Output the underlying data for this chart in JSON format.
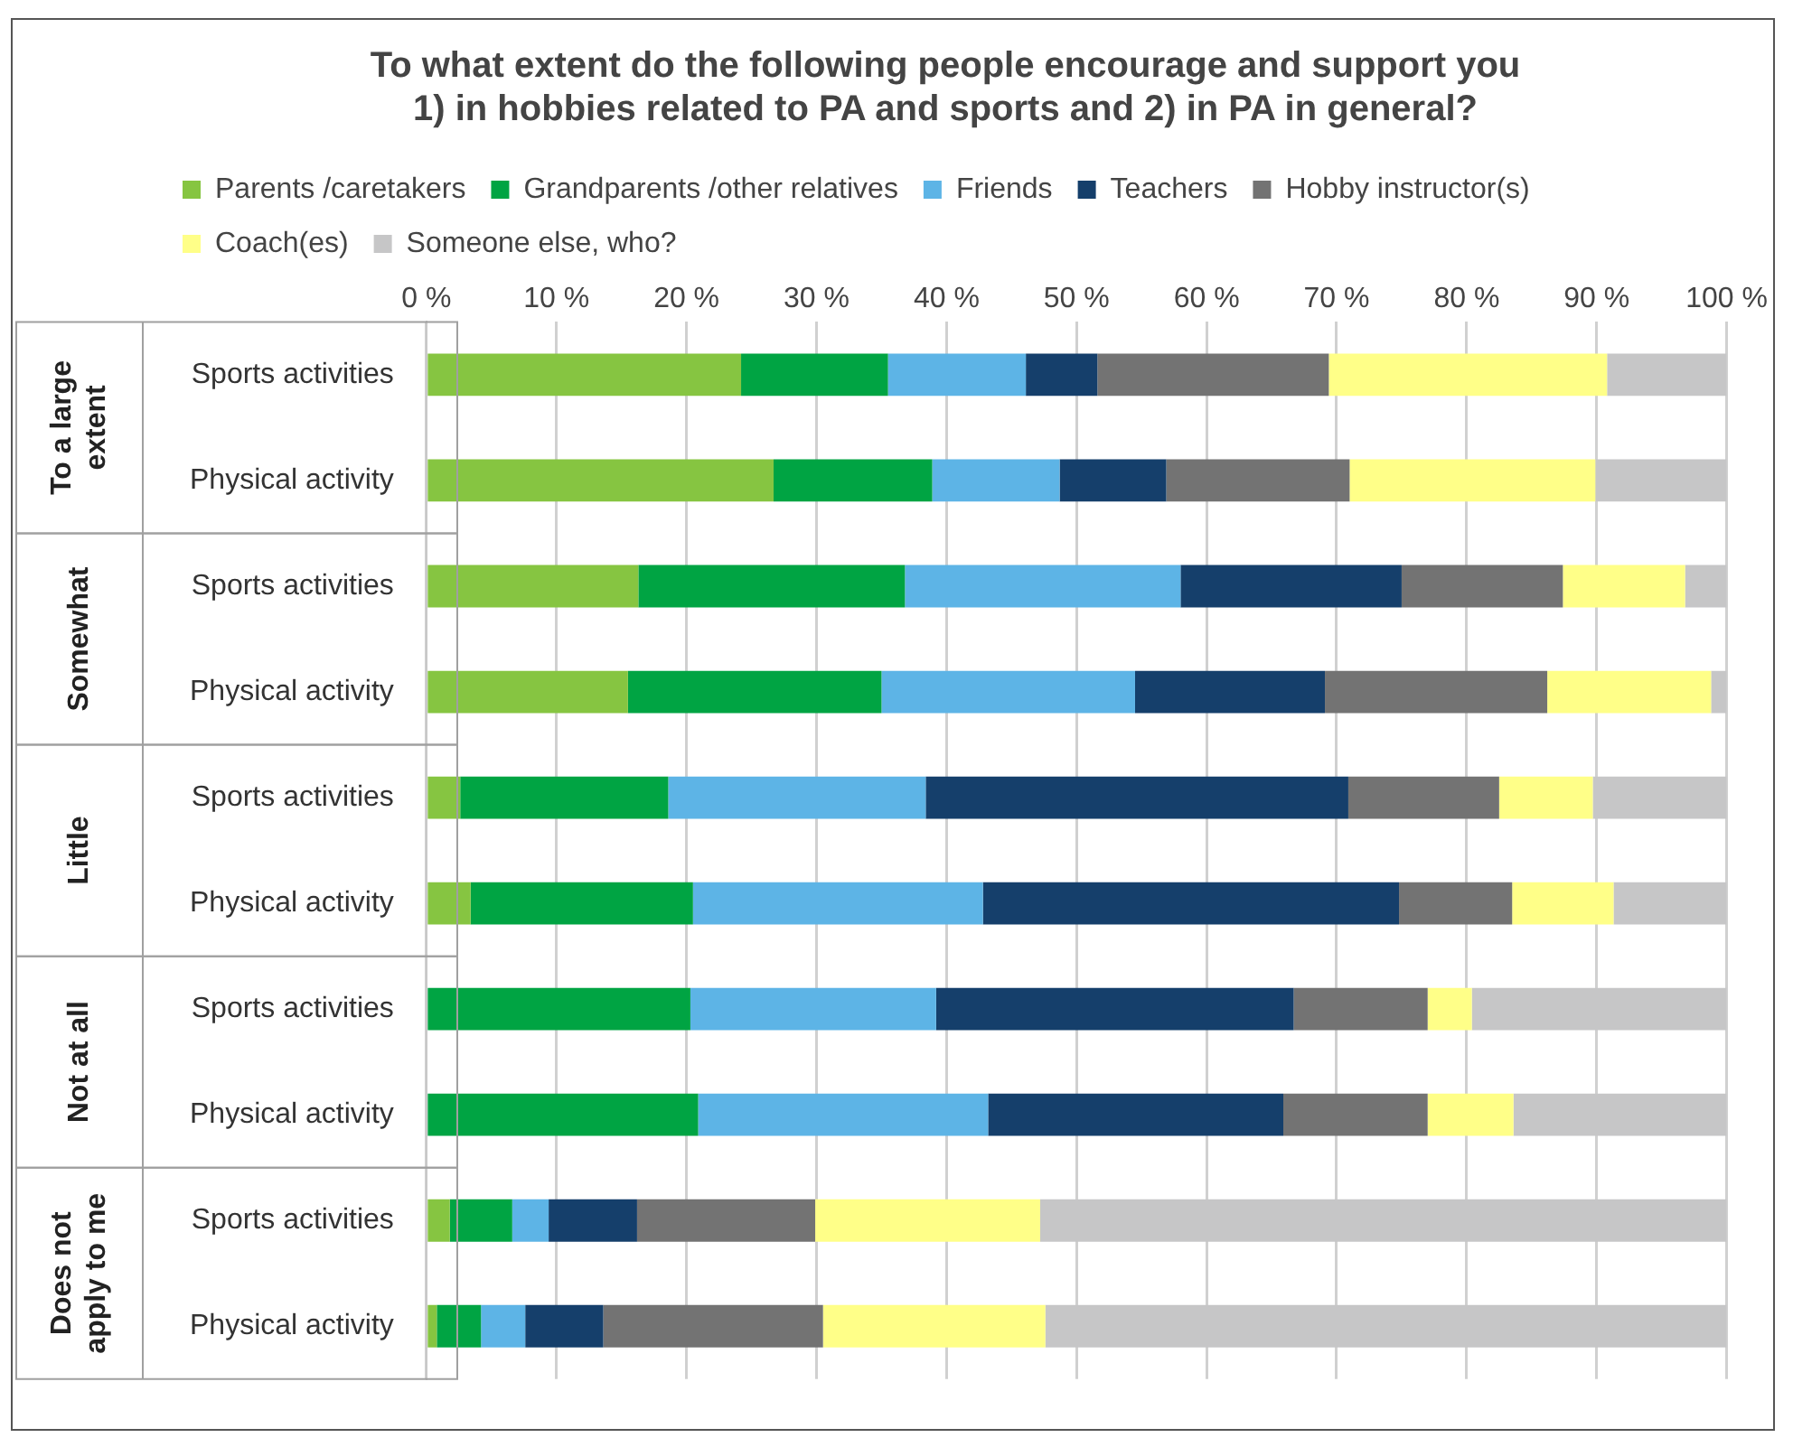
{
  "chart_data": {
    "type": "bar",
    "orientation": "horizontal",
    "stacked": true,
    "title": "To what extent do the following people encourage and support you\n1) in hobbies related to PA and sports and 2) in PA in general?",
    "categories": [
      "Sports activities",
      "Physical activity",
      "Sports activities",
      "Physical activity",
      "Sports activities",
      "Physical activity",
      "Sports activities",
      "Physical activity",
      "Sports activities",
      "Physical activity"
    ],
    "annotations": [
      "To a large extent",
      "Somewhat",
      "Little",
      "Not at all",
      "Does not apply to me"
    ],
    "series": [
      {
        "name": "Parents /caretakers",
        "color": "#86c541",
        "values": [
          24.2,
          26.7,
          16.3,
          15.5,
          2.6,
          3.4,
          0,
          0,
          1.8,
          0.8
        ]
      },
      {
        "name": "Grandparents /other relatives",
        "color": "#00a443",
        "values": [
          11.3,
          12.2,
          20.5,
          19.5,
          16.0,
          17.1,
          20.3,
          20.9,
          4.8,
          3.4
        ]
      },
      {
        "name": "Friends",
        "color": "#5db4e6",
        "values": [
          10.6,
          9.8,
          21.2,
          19.5,
          19.8,
          22.3,
          18.9,
          22.3,
          2.8,
          3.4
        ]
      },
      {
        "name": "Teachers",
        "color": "#153f6b",
        "values": [
          5.5,
          8.2,
          17.0,
          14.6,
          32.5,
          32.0,
          27.5,
          22.7,
          6.8,
          6.0
        ]
      },
      {
        "name": "Hobby instructor(s)",
        "color": "#737373",
        "values": [
          17.8,
          14.1,
          12.4,
          17.1,
          11.6,
          8.7,
          10.3,
          11.1,
          13.7,
          16.9
        ]
      },
      {
        "name": "Coach(es)",
        "color": "#ffff88",
        "values": [
          21.4,
          18.9,
          9.4,
          12.6,
          7.2,
          7.8,
          3.4,
          6.6,
          17.3,
          17.1
        ]
      },
      {
        "name": "Someone else, who?",
        "color": "#c6c6c7",
        "values": [
          9.2,
          10.1,
          3.2,
          1.2,
          10.3,
          8.7,
          19.6,
          16.4,
          52.8,
          52.4
        ]
      }
    ],
    "xlim": [
      0,
      100
    ],
    "xticks": [
      {
        "value": 0,
        "label": "0 %"
      },
      {
        "value": 10,
        "label": "10 %"
      },
      {
        "value": 20,
        "label": "20 %"
      },
      {
        "value": 30,
        "label": "30 %"
      },
      {
        "value": 40,
        "label": "40 %"
      },
      {
        "value": 50,
        "label": "50 %"
      },
      {
        "value": 60,
        "label": "60 %"
      },
      {
        "value": 70,
        "label": "70 %"
      },
      {
        "value": 80,
        "label": "80 %"
      },
      {
        "value": 90,
        "label": "90 %"
      },
      {
        "value": 100,
        "label": "100 %"
      }
    ],
    "grid": "x",
    "legend": "top"
  }
}
